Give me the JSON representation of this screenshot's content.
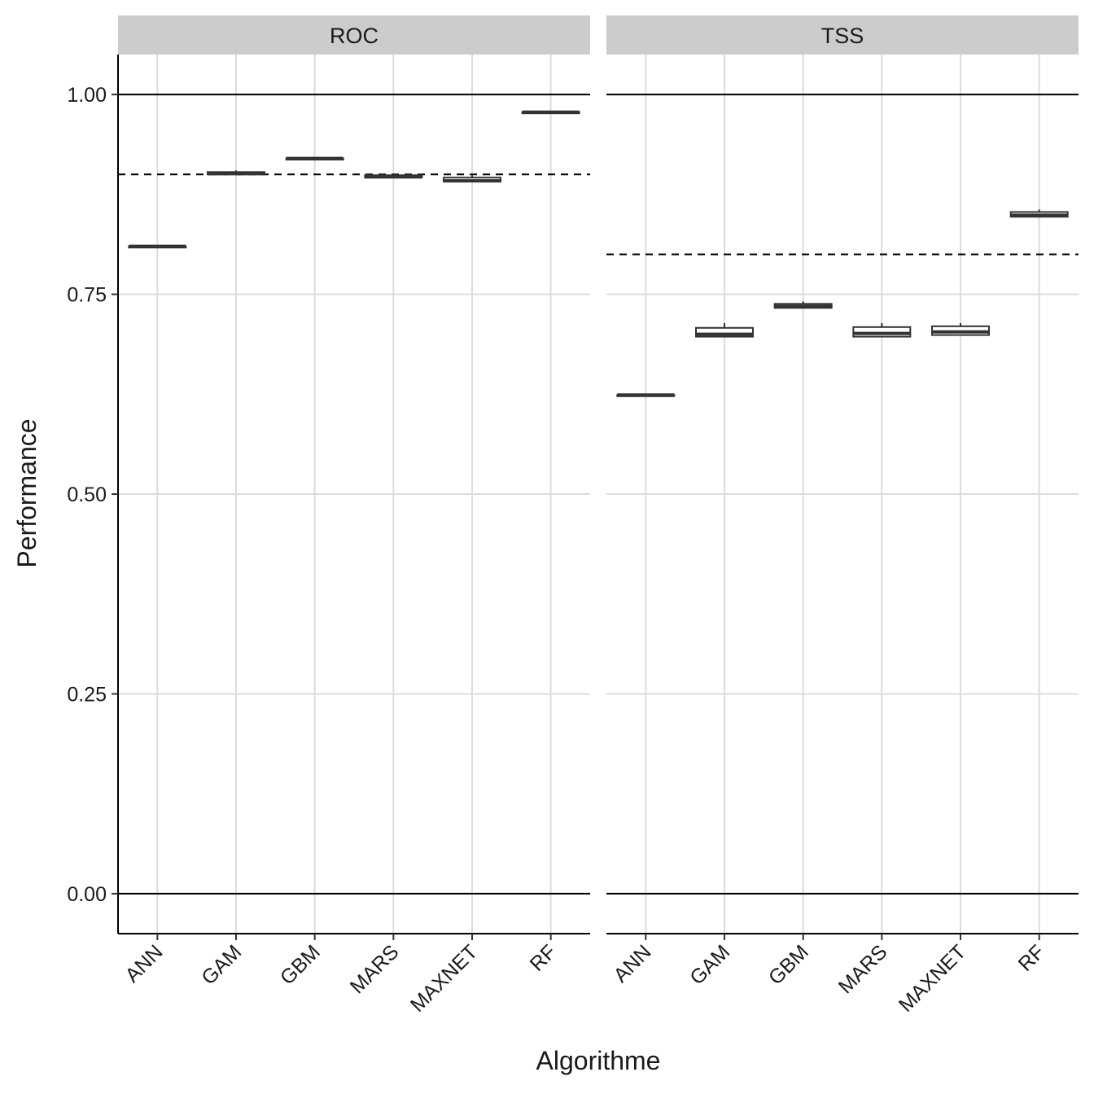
{
  "chart_data": {
    "type": "boxplot",
    "xlabel": "Algorithme",
    "ylabel": "Performance",
    "ylim": [
      -0.05,
      1.05
    ],
    "yticks": [
      0.0,
      0.25,
      0.5,
      0.75,
      1.0
    ],
    "ytick_labels": [
      "0.00",
      "0.25",
      "0.50",
      "0.75",
      "1.00"
    ],
    "categories": [
      "ANN",
      "GAM",
      "GBM",
      "MARS",
      "MAXNET",
      "RF"
    ],
    "grid": "major gridlines (light grey)",
    "facets": [
      {
        "label": "ROC",
        "threshold": 0.9,
        "reference_lines": [
          0.0,
          1.0
        ],
        "boxes": [
          {
            "category": "ANN",
            "min": 0.81,
            "q1": 0.81,
            "median": 0.81,
            "q3": 0.81,
            "max": 0.81
          },
          {
            "category": "GAM",
            "min": 0.9,
            "q1": 0.9,
            "median": 0.901,
            "q3": 0.903,
            "max": 0.905
          },
          {
            "category": "GBM",
            "min": 0.92,
            "q1": 0.92,
            "median": 0.92,
            "q3": 0.92,
            "max": 0.92
          },
          {
            "category": "MARS",
            "min": 0.896,
            "q1": 0.896,
            "median": 0.897,
            "q3": 0.899,
            "max": 0.9
          },
          {
            "category": "MAXNET",
            "min": 0.891,
            "q1": 0.891,
            "median": 0.892,
            "q3": 0.896,
            "max": 0.899
          },
          {
            "category": "RF",
            "min": 0.978,
            "q1": 0.978,
            "median": 0.978,
            "q3": 0.978,
            "max": 0.978
          }
        ]
      },
      {
        "label": "TSS",
        "threshold": 0.8,
        "reference_lines": [
          0.0,
          1.0
        ],
        "boxes": [
          {
            "category": "ANN",
            "min": 0.624,
            "q1": 0.624,
            "median": 0.624,
            "q3": 0.624,
            "max": 0.624
          },
          {
            "category": "GAM",
            "min": 0.697,
            "q1": 0.697,
            "median": 0.7,
            "q3": 0.708,
            "max": 0.714
          },
          {
            "category": "GBM",
            "min": 0.733,
            "q1": 0.733,
            "median": 0.735,
            "q3": 0.738,
            "max": 0.741
          },
          {
            "category": "MARS",
            "min": 0.697,
            "q1": 0.697,
            "median": 0.701,
            "q3": 0.709,
            "max": 0.714
          },
          {
            "category": "MAXNET",
            "min": 0.699,
            "q1": 0.699,
            "median": 0.703,
            "q3": 0.71,
            "max": 0.714
          },
          {
            "category": "RF",
            "min": 0.847,
            "q1": 0.847,
            "median": 0.849,
            "q3": 0.853,
            "max": 0.856
          }
        ]
      }
    ]
  }
}
